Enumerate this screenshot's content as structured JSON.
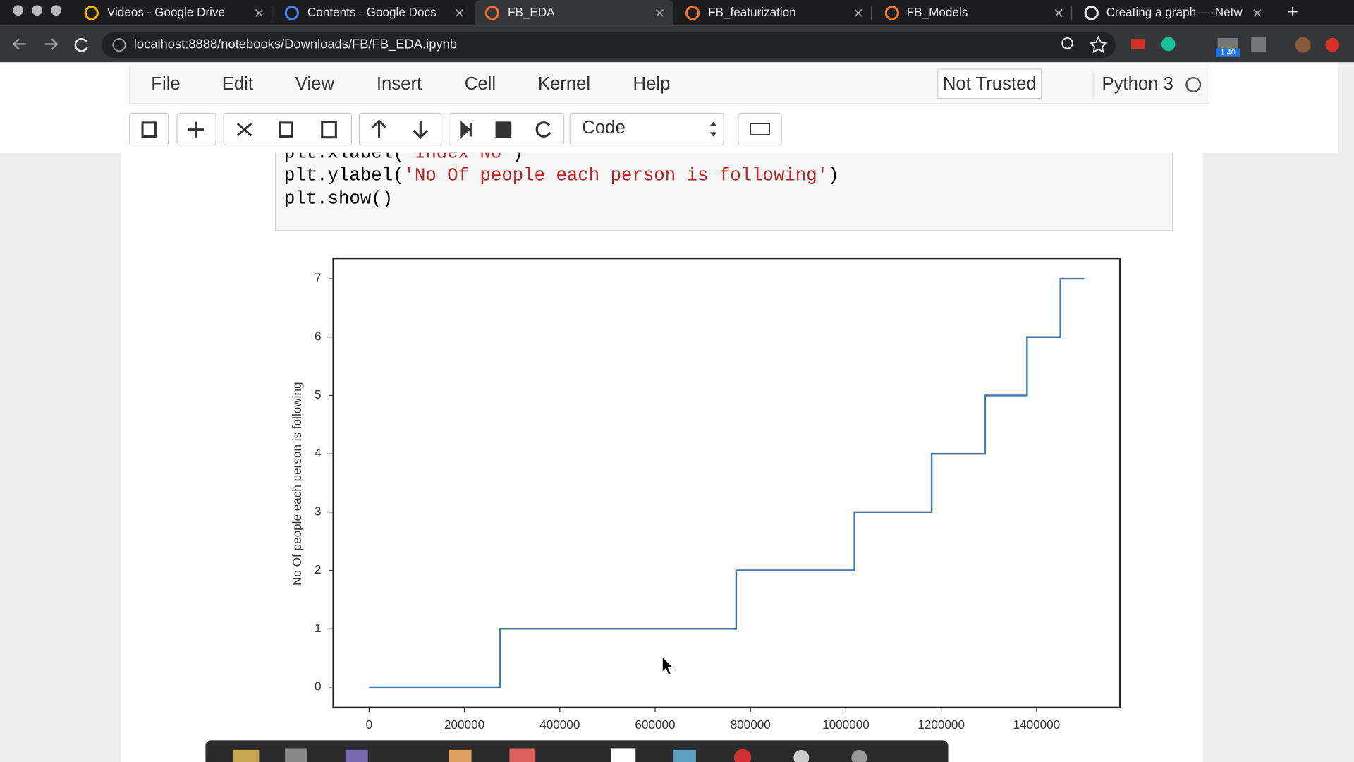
{
  "browser": {
    "tabs": [
      "Videos - Google Drive",
      "Contents - Google Docs",
      "FB_EDA",
      "FB_featurization",
      "FB_Models",
      "Creating a graph — Netw"
    ],
    "url": "localhost:8888/notebooks/Downloads/FB/FB_EDA.ipynb",
    "badge": "1.40"
  },
  "notebook": {
    "menu": [
      "File",
      "Edit",
      "View",
      "Insert",
      "Cell",
      "Kernel",
      "Help"
    ],
    "trust": "Not Trusted",
    "kernel": "Python 3",
    "cell_type": "Code",
    "code": [
      {
        "call": "plt.xlabel(",
        "arg": "'Index No'",
        "end": ")"
      },
      {
        "call": "plt.ylabel(",
        "arg": "'No Of people each person is following'",
        "end": ")"
      },
      {
        "call": "plt.show()"
      }
    ]
  },
  "chart_data": {
    "type": "line",
    "ylabel": "No Of people each person is following",
    "x": [
      0,
      275000,
      275000,
      770000,
      770000,
      1018000,
      1018000,
      1180000,
      1180000,
      1292000,
      1292000,
      1380000,
      1380000,
      1450000,
      1450000,
      1500000
    ],
    "values": [
      0,
      0,
      1,
      1,
      2,
      2,
      3,
      3,
      4,
      4,
      5,
      5,
      6,
      6,
      7,
      7
    ],
    "color": "#3f7bb3",
    "xlim": [
      -75000,
      1575000
    ],
    "ylim": [
      -0.35,
      7.35
    ],
    "xticks": [
      0,
      200000,
      400000,
      600000,
      800000,
      1000000,
      1200000,
      1400000
    ],
    "yticks": [
      0,
      1,
      2,
      3,
      4,
      5,
      6,
      7
    ]
  }
}
